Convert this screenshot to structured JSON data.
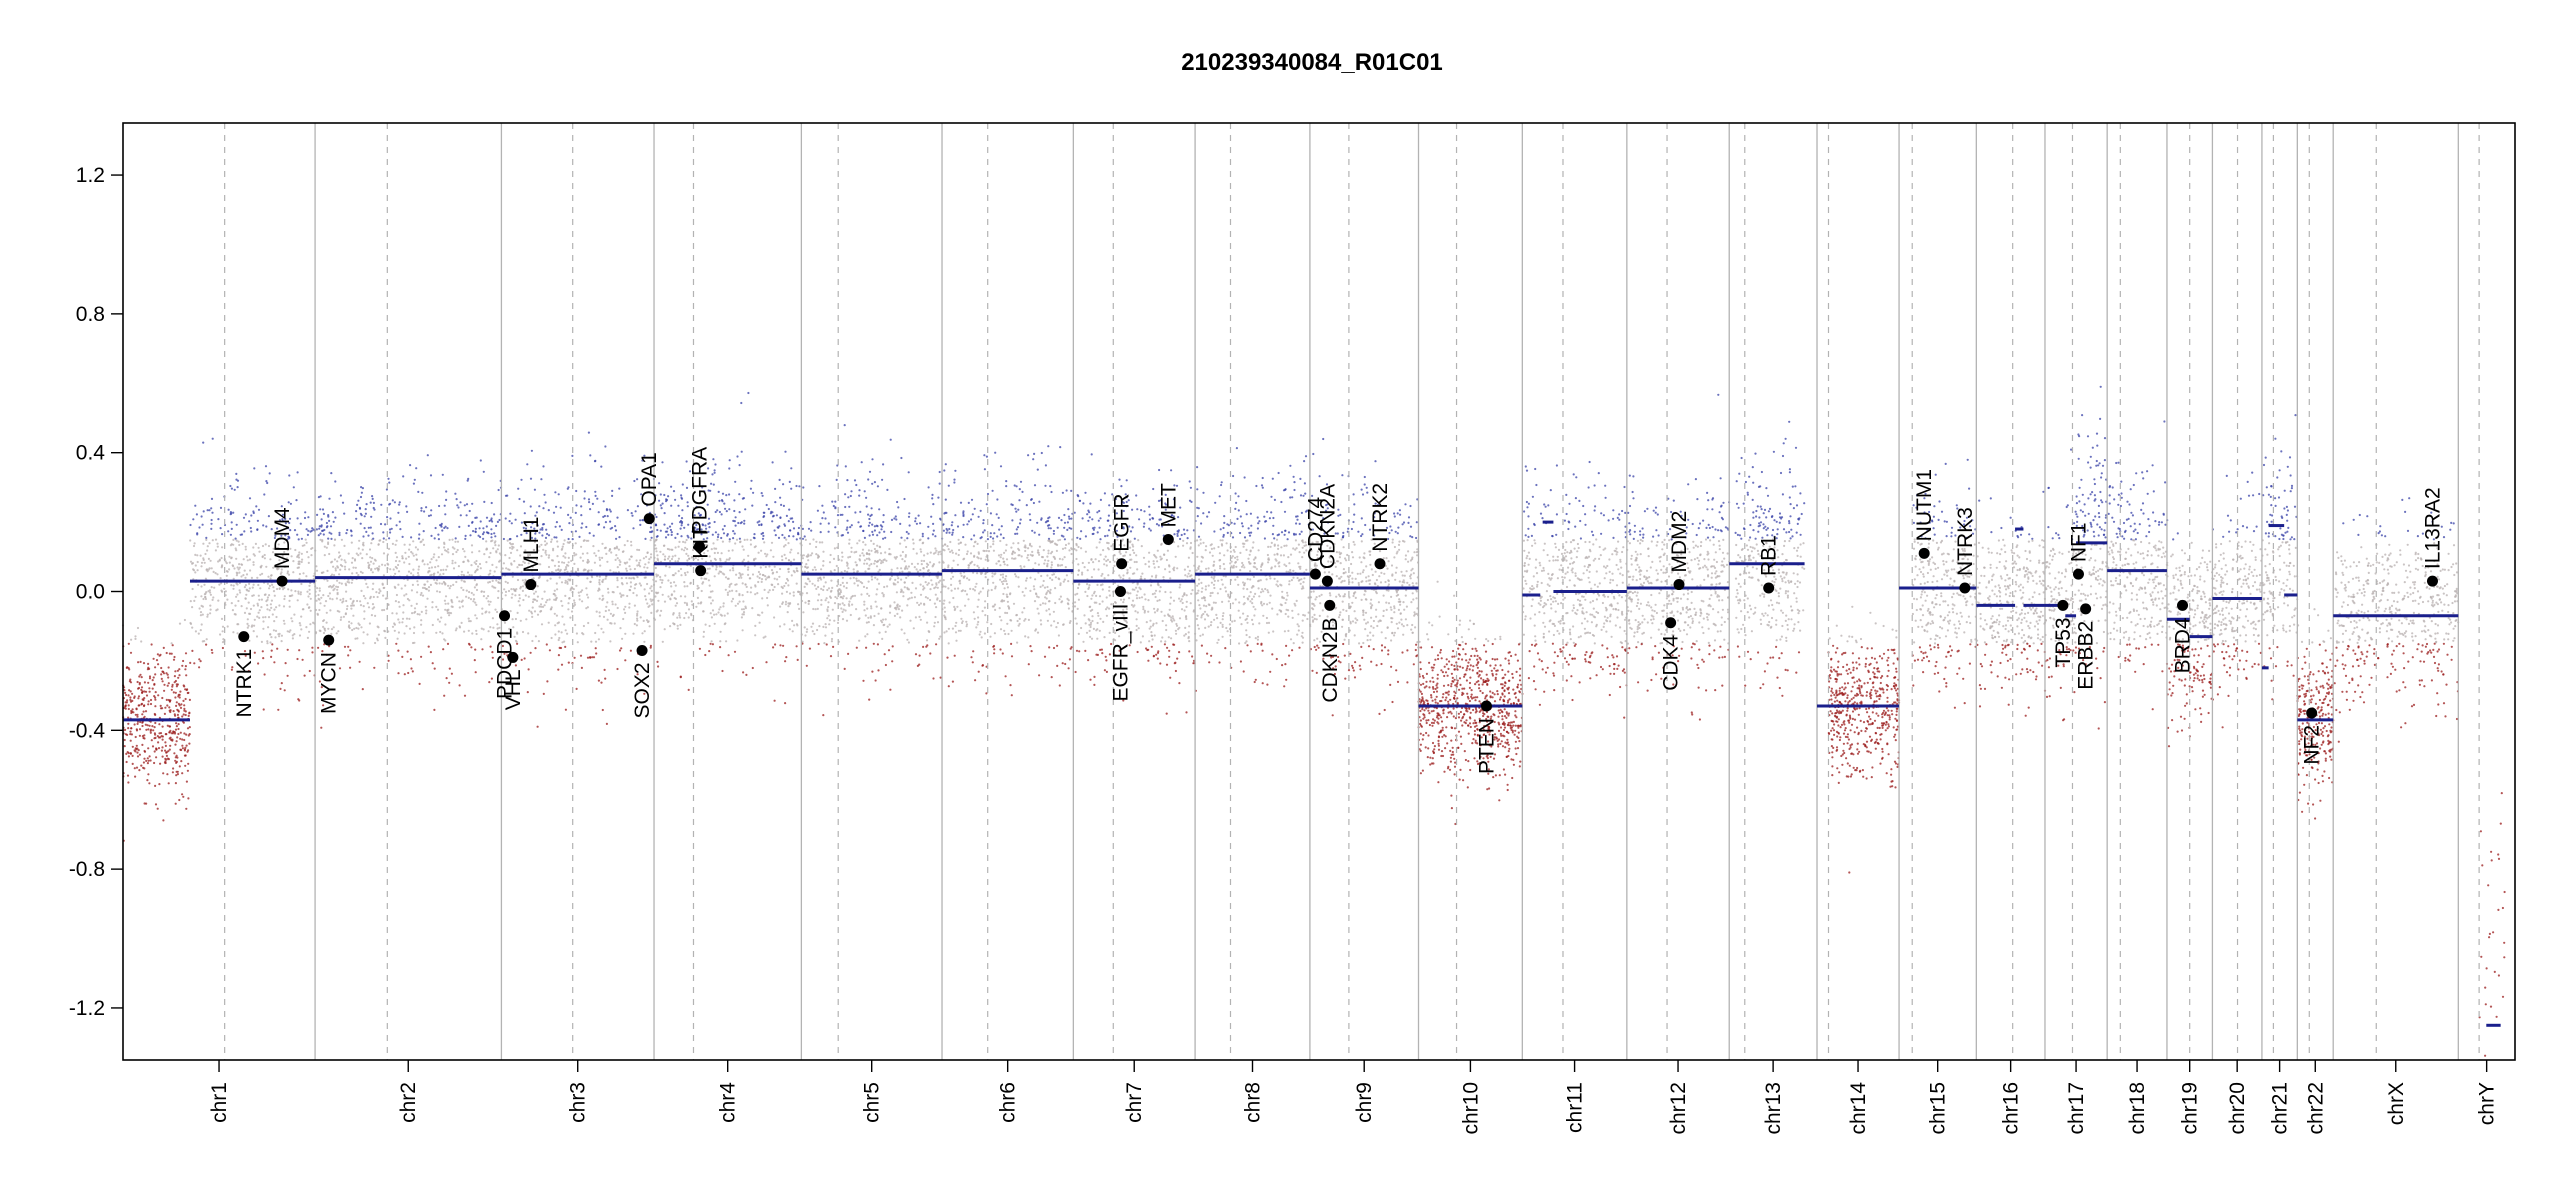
{
  "chart_data": {
    "type": "scatter",
    "title": "210239340084_R01C01",
    "ylim": [
      -1.35,
      1.35
    ],
    "y_ticks": [
      1.2,
      0.8,
      0.4,
      0.0,
      -0.4,
      -0.8,
      -1.2
    ],
    "y_tick_labels": [
      "1.2",
      "0.8",
      "0.4",
      "0.0",
      "-0.4",
      "-0.8",
      "-1.2"
    ],
    "genome_span": [
      0,
      1000
    ],
    "chromosomes": [
      {
        "name": "chr1",
        "start": 0,
        "end": 80.3,
        "centromere": 42.5
      },
      {
        "name": "chr2",
        "start": 80.3,
        "end": 158.2,
        "centromere": 110.5
      },
      {
        "name": "chr3",
        "start": 158.2,
        "end": 222.0,
        "centromere": 188.0
      },
      {
        "name": "chr4",
        "start": 222.0,
        "end": 283.6,
        "centromere": 238.5
      },
      {
        "name": "chr5",
        "start": 283.6,
        "end": 342.4,
        "centromere": 299.0
      },
      {
        "name": "chr6",
        "start": 342.4,
        "end": 397.3,
        "centromere": 361.5
      },
      {
        "name": "chr7",
        "start": 397.3,
        "end": 448.2,
        "centromere": 414.0
      },
      {
        "name": "chr8",
        "start": 448.2,
        "end": 496.2,
        "centromere": 463.0
      },
      {
        "name": "chr9",
        "start": 496.2,
        "end": 541.6,
        "centromere": 512.5
      },
      {
        "name": "chr10",
        "start": 541.6,
        "end": 585.0,
        "centromere": 557.5
      },
      {
        "name": "chr11",
        "start": 585.0,
        "end": 628.7,
        "centromere": 602.0
      },
      {
        "name": "chr12",
        "start": 628.7,
        "end": 671.5,
        "centromere": 645.5
      },
      {
        "name": "chr13",
        "start": 671.5,
        "end": 708.2,
        "centromere": 678.0
      },
      {
        "name": "chr14",
        "start": 708.2,
        "end": 742.5,
        "centromere": 713.0
      },
      {
        "name": "chr15",
        "start": 742.5,
        "end": 774.8,
        "centromere": 748.0
      },
      {
        "name": "chr16",
        "start": 774.8,
        "end": 803.5,
        "centromere": 790.0
      },
      {
        "name": "chr17",
        "start": 803.5,
        "end": 829.5,
        "centromere": 815.0
      },
      {
        "name": "chr18",
        "start": 829.5,
        "end": 854.5,
        "centromere": 835.0
      },
      {
        "name": "chr19",
        "start": 854.5,
        "end": 873.5,
        "centromere": 864.0
      },
      {
        "name": "chr20",
        "start": 873.5,
        "end": 894.2,
        "centromere": 884.0
      },
      {
        "name": "chr21",
        "start": 894.2,
        "end": 909.0,
        "centromere": 899.0
      },
      {
        "name": "chr22",
        "start": 909.0,
        "end": 924.0,
        "centromere": 914.0
      },
      {
        "name": "chrX",
        "start": 924.0,
        "end": 976.3,
        "centromere": 942.0
      },
      {
        "name": "chrY",
        "start": 976.3,
        "end": 1000,
        "centromere": 985.0
      }
    ],
    "segments": [
      {
        "chrom": "chr1",
        "x0": 0,
        "x1": 28,
        "y": -0.37
      },
      {
        "chrom": "chr1",
        "x0": 28,
        "x1": 80.3,
        "y": 0.03
      },
      {
        "chrom": "chr2",
        "x0": 80.3,
        "x1": 158.2,
        "y": 0.04
      },
      {
        "chrom": "chr3",
        "x0": 158.2,
        "x1": 222.0,
        "y": 0.05
      },
      {
        "chrom": "chr4",
        "x0": 222.0,
        "x1": 283.6,
        "y": 0.08
      },
      {
        "chrom": "chr5",
        "x0": 283.6,
        "x1": 342.4,
        "y": 0.05
      },
      {
        "chrom": "chr6",
        "x0": 342.4,
        "x1": 397.3,
        "y": 0.06
      },
      {
        "chrom": "chr7",
        "x0": 397.3,
        "x1": 448.2,
        "y": 0.03
      },
      {
        "chrom": "chr8",
        "x0": 448.2,
        "x1": 496.2,
        "y": 0.05
      },
      {
        "chrom": "chr9",
        "x0": 496.2,
        "x1": 541.6,
        "y": 0.01
      },
      {
        "chrom": "chr10",
        "x0": 541.6,
        "x1": 585.0,
        "y": -0.33
      },
      {
        "chrom": "chr11",
        "x0": 585.0,
        "x1": 592.5,
        "y": -0.01
      },
      {
        "chrom": "chr11",
        "x0": 593.5,
        "x1": 598.0,
        "y": 0.2
      },
      {
        "chrom": "chr11",
        "x0": 598.0,
        "x1": 628.7,
        "y": 0.0
      },
      {
        "chrom": "chr12",
        "x0": 628.7,
        "x1": 671.5,
        "y": 0.01
      },
      {
        "chrom": "chr13",
        "x0": 671.5,
        "x1": 703.0,
        "y": 0.08
      },
      {
        "chrom": "chr14",
        "x0": 708.2,
        "x1": 742.5,
        "y": -0.33
      },
      {
        "chrom": "chr15",
        "x0": 742.5,
        "x1": 774.8,
        "y": 0.01
      },
      {
        "chrom": "chr16",
        "x0": 774.8,
        "x1": 791.0,
        "y": -0.04
      },
      {
        "chrom": "chr16",
        "x0": 791.0,
        "x1": 794.5,
        "y": 0.18
      },
      {
        "chrom": "chr16",
        "x0": 794.5,
        "x1": 803.5,
        "y": -0.04
      },
      {
        "chrom": "chr17",
        "x0": 803.5,
        "x1": 812.0,
        "y": -0.04
      },
      {
        "chrom": "chr17",
        "x0": 812.0,
        "x1": 816.5,
        "y": -0.07
      },
      {
        "chrom": "chr17",
        "x0": 816.5,
        "x1": 829.5,
        "y": 0.14
      },
      {
        "chrom": "chr18",
        "x0": 829.5,
        "x1": 854.5,
        "y": 0.06
      },
      {
        "chrom": "chr19",
        "x0": 854.5,
        "x1": 864.0,
        "y": -0.08
      },
      {
        "chrom": "chr19",
        "x0": 864.0,
        "x1": 873.5,
        "y": -0.13
      },
      {
        "chrom": "chr20",
        "x0": 873.5,
        "x1": 894.2,
        "y": -0.02
      },
      {
        "chrom": "chr21",
        "x0": 894.2,
        "x1": 897.0,
        "y": -0.22
      },
      {
        "chrom": "chr21",
        "x0": 897.0,
        "x1": 903.5,
        "y": 0.19
      },
      {
        "chrom": "chr21",
        "x0": 903.5,
        "x1": 909.0,
        "y": -0.01
      },
      {
        "chrom": "chr22",
        "x0": 909.0,
        "x1": 924.0,
        "y": -0.37
      },
      {
        "chrom": "chrX",
        "x0": 924.0,
        "x1": 976.3,
        "y": -0.07
      },
      {
        "chrom": "chrY",
        "x0": 988.0,
        "x1": 994.0,
        "y": -1.25
      }
    ],
    "genes": [
      {
        "name": "NTRK1",
        "x": 50.5,
        "y": -0.13,
        "side": "below"
      },
      {
        "name": "MDM4",
        "x": 66.5,
        "y": 0.03,
        "side": "above"
      },
      {
        "name": "MYCN",
        "x": 86.0,
        "y": -0.14,
        "side": "below"
      },
      {
        "name": "PDCD1",
        "x": 159.5,
        "y": -0.07,
        "side": "below"
      },
      {
        "name": "VHL",
        "x": 163.0,
        "y": -0.19,
        "side": "below"
      },
      {
        "name": "MLH1",
        "x": 170.5,
        "y": 0.02,
        "side": "above"
      },
      {
        "name": "SOX2",
        "x": 217.0,
        "y": -0.17,
        "side": "below"
      },
      {
        "name": "OPA1",
        "x": 220.0,
        "y": 0.21,
        "side": "above"
      },
      {
        "name": "PDGFRA",
        "x": 241.0,
        "y": 0.13,
        "side": "above"
      },
      {
        "name": "KIT",
        "x": 241.5,
        "y": 0.06,
        "side": "above"
      },
      {
        "name": "EGFR_vIII",
        "x": 417.0,
        "y": 0.0,
        "side": "below"
      },
      {
        "name": "EGFR",
        "x": 417.5,
        "y": 0.08,
        "side": "above"
      },
      {
        "name": "MET",
        "x": 437.0,
        "y": 0.15,
        "side": "above"
      },
      {
        "name": "CD274",
        "x": 498.5,
        "y": 0.05,
        "side": "above"
      },
      {
        "name": "CDKN2A",
        "x": 503.5,
        "y": 0.03,
        "side": "above"
      },
      {
        "name": "CDKN2B",
        "x": 504.5,
        "y": -0.04,
        "side": "below"
      },
      {
        "name": "NTRK2",
        "x": 525.5,
        "y": 0.08,
        "side": "above"
      },
      {
        "name": "PTEN",
        "x": 570.0,
        "y": -0.33,
        "side": "below"
      },
      {
        "name": "MDM2",
        "x": 650.5,
        "y": 0.02,
        "side": "above"
      },
      {
        "name": "CDK4",
        "x": 647.0,
        "y": -0.09,
        "side": "below"
      },
      {
        "name": "RB1",
        "x": 688.0,
        "y": 0.01,
        "side": "above"
      },
      {
        "name": "NUTM1",
        "x": 753.0,
        "y": 0.11,
        "side": "above"
      },
      {
        "name": "NTRK3",
        "x": 770.0,
        "y": 0.01,
        "side": "above"
      },
      {
        "name": "TP53",
        "x": 811.0,
        "y": -0.04,
        "side": "below"
      },
      {
        "name": "NF1",
        "x": 817.5,
        "y": 0.05,
        "side": "above"
      },
      {
        "name": "ERBB2",
        "x": 820.5,
        "y": -0.05,
        "side": "below"
      },
      {
        "name": "BRD4",
        "x": 861.0,
        "y": -0.04,
        "side": "below"
      },
      {
        "name": "NF2",
        "x": 915.0,
        "y": -0.35,
        "side": "below"
      },
      {
        "name": "IL13RA2",
        "x": 965.5,
        "y": 0.03,
        "side": "above"
      }
    ],
    "probe_clouds": [
      {
        "x0": 0,
        "x1": 28,
        "center": -0.37,
        "spread": 0.1,
        "density": 1.0
      },
      {
        "x0": 28,
        "x1": 80.3,
        "center": 0.03,
        "spread": 0.13,
        "density": 0.7
      },
      {
        "x0": 80.3,
        "x1": 158.2,
        "center": 0.04,
        "spread": 0.13,
        "density": 0.7
      },
      {
        "x0": 158.2,
        "x1": 222.0,
        "center": 0.05,
        "spread": 0.13,
        "density": 0.7
      },
      {
        "x0": 222.0,
        "x1": 283.6,
        "center": 0.08,
        "spread": 0.13,
        "density": 0.7
      },
      {
        "x0": 283.6,
        "x1": 342.4,
        "center": 0.05,
        "spread": 0.13,
        "density": 0.7
      },
      {
        "x0": 342.4,
        "x1": 397.3,
        "center": 0.06,
        "spread": 0.13,
        "density": 0.7
      },
      {
        "x0": 397.3,
        "x1": 448.2,
        "center": 0.03,
        "spread": 0.13,
        "density": 0.7
      },
      {
        "x0": 448.2,
        "x1": 496.2,
        "center": 0.05,
        "spread": 0.13,
        "density": 0.7
      },
      {
        "x0": 496.2,
        "x1": 541.6,
        "center": 0.01,
        "spread": 0.13,
        "density": 0.7
      },
      {
        "x0": 541.6,
        "x1": 585.0,
        "center": -0.33,
        "spread": 0.1,
        "density": 1.0
      },
      {
        "x0": 585.0,
        "x1": 628.7,
        "center": 0.0,
        "spread": 0.13,
        "density": 0.7
      },
      {
        "x0": 628.7,
        "x1": 671.5,
        "center": 0.01,
        "spread": 0.13,
        "density": 0.7
      },
      {
        "x0": 674.0,
        "x1": 703.0,
        "center": 0.08,
        "spread": 0.14,
        "density": 0.7
      },
      {
        "x0": 713.0,
        "x1": 742.5,
        "center": -0.33,
        "spread": 0.1,
        "density": 1.0
      },
      {
        "x0": 748.0,
        "x1": 774.8,
        "center": 0.01,
        "spread": 0.13,
        "density": 0.7
      },
      {
        "x0": 774.8,
        "x1": 803.5,
        "center": -0.04,
        "spread": 0.12,
        "density": 0.7
      },
      {
        "x0": 803.5,
        "x1": 816.5,
        "center": -0.05,
        "spread": 0.12,
        "density": 0.7
      },
      {
        "x0": 816.5,
        "x1": 829.5,
        "center": 0.14,
        "spread": 0.18,
        "density": 0.8
      },
      {
        "x0": 829.5,
        "x1": 854.5,
        "center": 0.06,
        "spread": 0.13,
        "density": 0.7
      },
      {
        "x0": 854.5,
        "x1": 873.5,
        "center": -0.11,
        "spread": 0.13,
        "density": 0.8
      },
      {
        "x0": 873.5,
        "x1": 894.2,
        "center": -0.02,
        "spread": 0.13,
        "density": 0.7
      },
      {
        "x0": 894.2,
        "x1": 909.0,
        "center": 0.1,
        "spread": 0.15,
        "density": 0.7
      },
      {
        "x0": 909.0,
        "x1": 924.0,
        "center": -0.37,
        "spread": 0.1,
        "density": 1.0
      },
      {
        "x0": 924.0,
        "x1": 976.3,
        "center": -0.07,
        "spread": 0.12,
        "density": 0.6
      },
      {
        "x0": 985.0,
        "x1": 996.0,
        "center": -0.9,
        "spread": 0.25,
        "density": 0.15
      }
    ]
  },
  "colors": {
    "segment": "#1a1f8c",
    "gain_dot": "#3a43a8",
    "loss_dot": "#9b1c1c",
    "neutral_dot": "#b8b0b0",
    "chrom_boundary": "#b3b3b3",
    "centromere": "#b3b3b3",
    "axis": "#000000",
    "gene_marker": "#000000"
  }
}
